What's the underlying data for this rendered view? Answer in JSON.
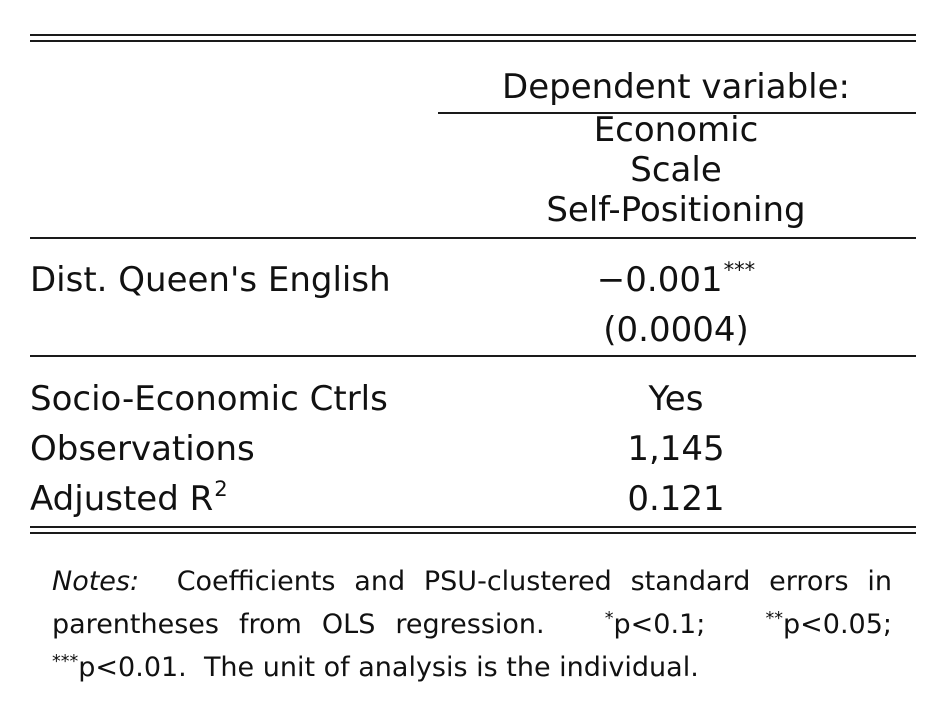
{
  "header": {
    "dv_label": "Dependent variable:",
    "dv_name_lines": [
      "Economic",
      "Scale",
      "Self-Positioning"
    ]
  },
  "rows": [
    {
      "label": "Dist. Queen's English",
      "coef": "−0.001",
      "stars": "***",
      "se": "(0.0004)"
    }
  ],
  "footer_rows": [
    {
      "label": "Socio-Economic Ctrls",
      "value": "Yes"
    },
    {
      "label": "Observations",
      "value": "1,145"
    },
    {
      "label": "Adjusted R",
      "label_sup": "2",
      "value": "0.121"
    }
  ],
  "notes": {
    "label": "Notes:",
    "text": "Coefficients and PSU-clustered standard errors in parentheses from OLS regression.",
    "sig": [
      {
        "stars": "*",
        "text": "p<0.1;"
      },
      {
        "stars": "**",
        "text": "p<0.05;"
      },
      {
        "stars": "***",
        "text": "p<0.01."
      }
    ],
    "tail": "The unit of analysis is the individual."
  }
}
